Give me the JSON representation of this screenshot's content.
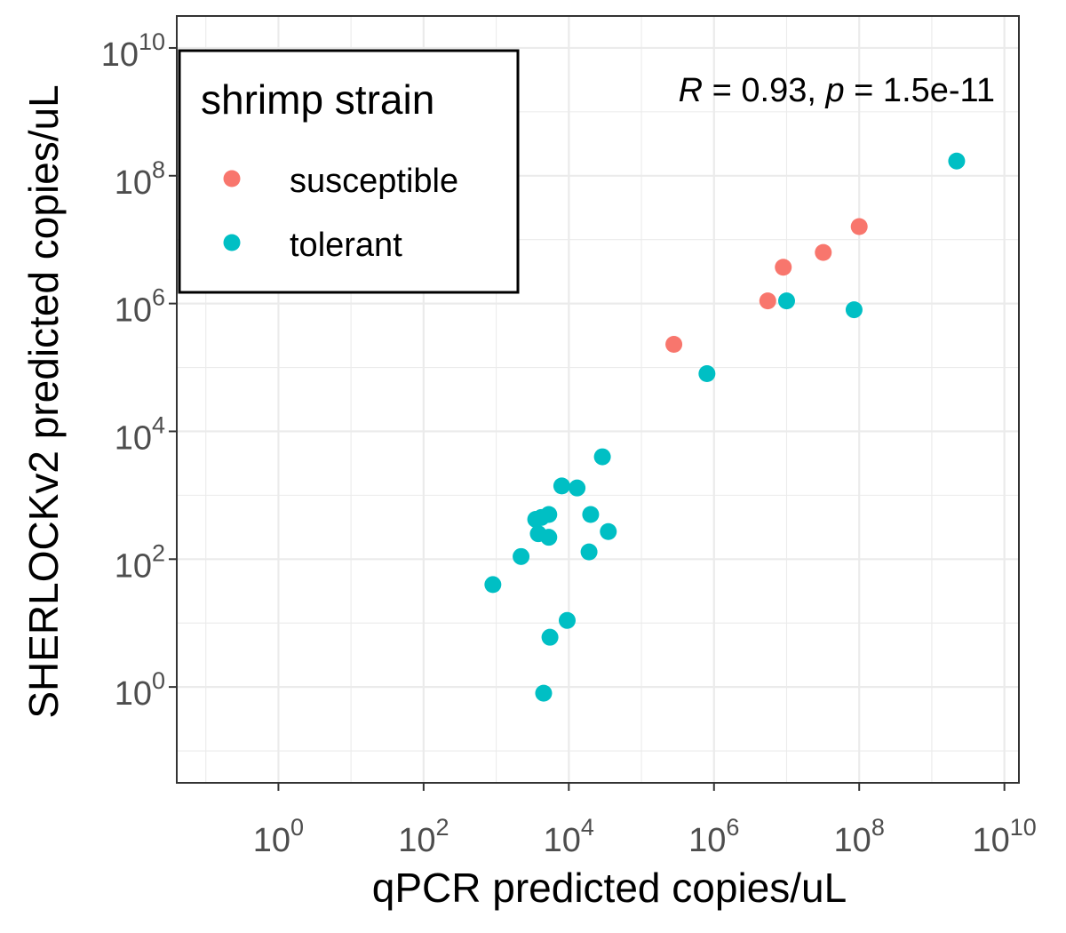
{
  "chart_data": {
    "type": "scatter",
    "title": "",
    "xlabel": "qPCR predicted copies/uL",
    "ylabel": "SHERLOCKv2 predicted copies/uL",
    "x_scale": "log10",
    "y_scale": "log10",
    "x_log10_range": [
      -1.4,
      10.2
    ],
    "y_log10_range": [
      -1.5,
      10.5
    ],
    "x_ticks_log10": [
      0,
      2,
      4,
      6,
      8,
      10
    ],
    "y_ticks_log10": [
      0,
      2,
      4,
      6,
      8,
      10
    ],
    "tick_base": "10",
    "grid": true,
    "legend": {
      "title": "shrimp strain",
      "placement": "top-left",
      "entries": [
        {
          "label": "susceptible",
          "color": "#F8766D"
        },
        {
          "label": "tolerant",
          "color": "#00BFC4"
        }
      ]
    },
    "annotation": {
      "r_symbol": "R",
      "r_text": " = 0.93, ",
      "p_symbol": "p",
      "p_text": " = 1.5e-11"
    },
    "series": [
      {
        "name": "susceptible",
        "color": "#F8766D",
        "points": [
          {
            "x": 280000,
            "y": 230000
          },
          {
            "x": 5500000,
            "y": 1100000
          },
          {
            "x": 9000000,
            "y": 3700000
          },
          {
            "x": 32000000,
            "y": 6300000
          },
          {
            "x": 100000000,
            "y": 16000000
          }
        ]
      },
      {
        "name": "tolerant",
        "color": "#00BFC4",
        "points": [
          {
            "x": 900,
            "y": 40
          },
          {
            "x": 2200,
            "y": 110
          },
          {
            "x": 3500,
            "y": 420
          },
          {
            "x": 3800,
            "y": 250
          },
          {
            "x": 4200,
            "y": 450
          },
          {
            "x": 5300,
            "y": 220
          },
          {
            "x": 5300,
            "y": 500
          },
          {
            "x": 4500,
            "y": 0.8
          },
          {
            "x": 5500,
            "y": 6
          },
          {
            "x": 9500,
            "y": 11
          },
          {
            "x": 8000,
            "y": 1400
          },
          {
            "x": 13000,
            "y": 1300
          },
          {
            "x": 19000,
            "y": 130
          },
          {
            "x": 20000,
            "y": 500
          },
          {
            "x": 29000,
            "y": 4000
          },
          {
            "x": 35000,
            "y": 270
          },
          {
            "x": 800000,
            "y": 80000
          },
          {
            "x": 10000000,
            "y": 1100000
          },
          {
            "x": 85000000,
            "y": 800000
          },
          {
            "x": 2200000000,
            "y": 170000000
          }
        ]
      }
    ]
  }
}
